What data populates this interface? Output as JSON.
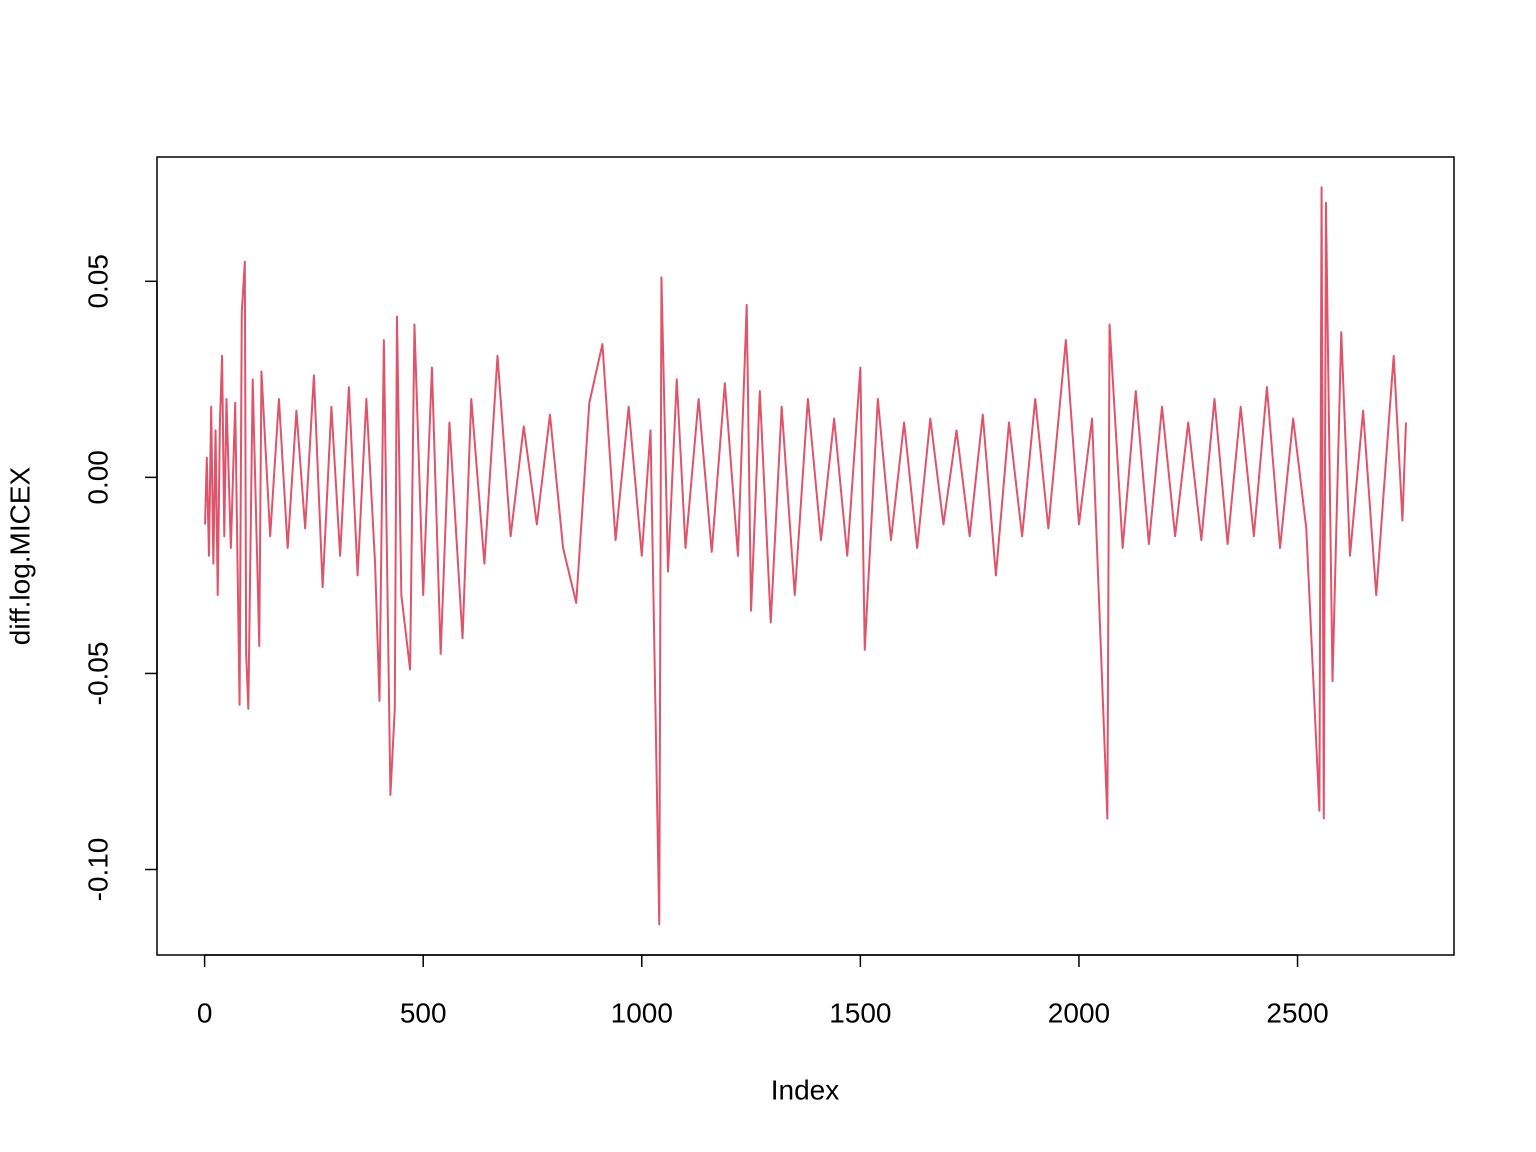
{
  "chart_data": {
    "type": "line",
    "x_label": "Index",
    "y_label": "diff.log.MICEX",
    "xlim": [
      -108.9,
      2857.9
    ],
    "ylim": [
      -0.1218,
      0.0817
    ],
    "xticks": [
      0,
      500,
      1000,
      1500,
      2000,
      2500
    ],
    "yticks": [
      {
        "value": -0.1,
        "label": "-0.10"
      },
      {
        "value": -0.05,
        "label": "-0.05"
      },
      {
        "value": 0,
        "label": "0.00"
      },
      {
        "value": 0.05,
        "label": "0.05"
      }
    ],
    "series": [
      {
        "color": "#DF536B",
        "x": [
          1,
          5,
          10,
          15,
          20,
          25,
          30,
          35,
          40,
          45,
          50,
          60,
          70,
          80,
          85,
          92,
          95,
          100,
          110,
          120,
          125,
          130,
          150,
          170,
          190,
          210,
          230,
          250,
          270,
          290,
          310,
          330,
          350,
          370,
          390,
          400,
          410,
          425,
          435,
          440,
          450,
          470,
          480,
          500,
          520,
          540,
          560,
          590,
          610,
          640,
          670,
          700,
          730,
          760,
          790,
          820,
          850,
          880,
          910,
          940,
          970,
          1000,
          1020,
          1040,
          1045,
          1060,
          1080,
          1100,
          1130,
          1160,
          1190,
          1220,
          1240,
          1250,
          1270,
          1295,
          1320,
          1350,
          1380,
          1410,
          1440,
          1470,
          1500,
          1510,
          1540,
          1570,
          1600,
          1630,
          1660,
          1690,
          1720,
          1750,
          1780,
          1810,
          1840,
          1870,
          1900,
          1930,
          1970,
          2000,
          2030,
          2065,
          2070,
          2100,
          2130,
          2160,
          2190,
          2220,
          2250,
          2280,
          2310,
          2340,
          2370,
          2400,
          2430,
          2460,
          2490,
          2520,
          2550,
          2555,
          2560,
          2565,
          2580,
          2600,
          2620,
          2650,
          2680,
          2710,
          2720,
          2740,
          2748
        ],
        "values": [
          -0.012,
          0.005,
          -0.02,
          0.018,
          -0.022,
          0.012,
          -0.03,
          0.014,
          0.031,
          -0.015,
          0.02,
          -0.018,
          0.019,
          -0.058,
          0.042,
          0.055,
          -0.045,
          -0.059,
          0.025,
          -0.02,
          -0.043,
          0.027,
          -0.015,
          0.02,
          -0.018,
          0.017,
          -0.013,
          0.026,
          -0.028,
          0.018,
          -0.02,
          0.023,
          -0.025,
          0.02,
          -0.022,
          -0.057,
          0.035,
          -0.081,
          -0.059,
          0.041,
          -0.03,
          -0.049,
          0.039,
          -0.03,
          0.028,
          -0.045,
          0.014,
          -0.041,
          0.02,
          -0.022,
          0.031,
          -0.015,
          0.013,
          -0.012,
          0.016,
          -0.018,
          -0.032,
          0.019,
          0.034,
          -0.016,
          0.018,
          -0.02,
          0.012,
          -0.114,
          0.051,
          -0.024,
          0.025,
          -0.018,
          0.02,
          -0.019,
          0.024,
          -0.02,
          0.044,
          -0.034,
          0.022,
          -0.037,
          0.018,
          -0.03,
          0.02,
          -0.016,
          0.015,
          -0.02,
          0.028,
          -0.044,
          0.02,
          -0.016,
          0.014,
          -0.018,
          0.015,
          -0.012,
          0.012,
          -0.015,
          0.016,
          -0.025,
          0.014,
          -0.015,
          0.02,
          -0.013,
          0.035,
          -0.012,
          0.015,
          -0.087,
          0.039,
          -0.018,
          0.022,
          -0.017,
          0.018,
          -0.015,
          0.014,
          -0.016,
          0.02,
          -0.017,
          0.018,
          -0.015,
          0.023,
          -0.018,
          0.015,
          -0.013,
          -0.085,
          0.074,
          -0.087,
          0.07,
          -0.052,
          0.037,
          -0.02,
          0.017,
          -0.03,
          0.016,
          0.031,
          -0.011,
          0.014
        ]
      }
    ]
  }
}
